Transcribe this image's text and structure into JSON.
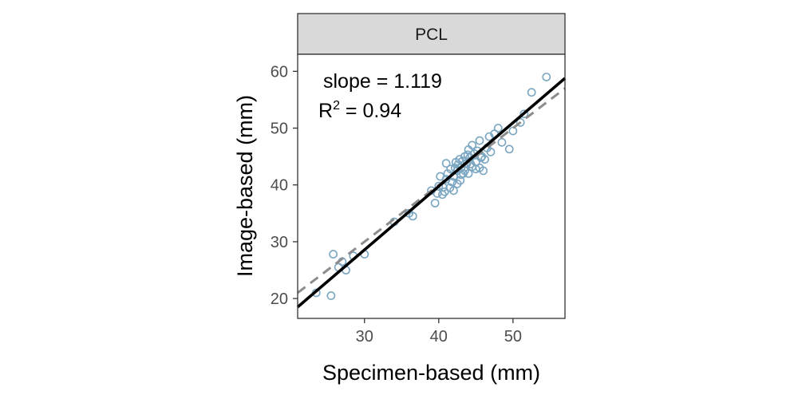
{
  "chart_data": {
    "type": "scatter",
    "panel": "PCL",
    "xlabel": "Specimen-based (mm)",
    "ylabel": "Image-based (mm)",
    "xlim": [
      21,
      57
    ],
    "ylim": [
      16.5,
      63
    ],
    "x_ticks": [
      30,
      40,
      50
    ],
    "y_ticks": [
      20,
      30,
      40,
      50,
      60
    ],
    "grid": false,
    "annotation": {
      "slope_text": "slope = 1.119",
      "r2_prefix": "R",
      "r2_sup": "2",
      "r2_suffix": " = 0.94"
    },
    "fit_line": {
      "slope": 1.119,
      "intercept": -5.0
    },
    "identity_line": {
      "slope": 1.0,
      "intercept": 0.0
    },
    "colors": {
      "points": "#7aa6c2",
      "fit": "#000000",
      "identity": "#8c8c8c",
      "strip_fill": "#d9d9d9",
      "border": "#333333"
    },
    "points": [
      [
        23.5,
        21.0
      ],
      [
        25.5,
        20.5
      ],
      [
        25.8,
        27.8
      ],
      [
        26.5,
        25.5
      ],
      [
        27.0,
        26.5
      ],
      [
        27.5,
        25.0
      ],
      [
        28.5,
        27.5
      ],
      [
        30.0,
        27.8
      ],
      [
        34.0,
        33.5
      ],
      [
        36.0,
        35.0
      ],
      [
        36.5,
        34.5
      ],
      [
        39.0,
        39.0
      ],
      [
        39.5,
        36.8
      ],
      [
        39.8,
        38.5
      ],
      [
        40.0,
        39.8
      ],
      [
        40.2,
        41.5
      ],
      [
        40.5,
        38.3
      ],
      [
        40.8,
        38.8
      ],
      [
        41.0,
        43.8
      ],
      [
        41.0,
        41.0
      ],
      [
        41.2,
        42.0
      ],
      [
        41.5,
        39.5
      ],
      [
        41.8,
        40.5
      ],
      [
        42.0,
        41.5
      ],
      [
        42.0,
        39.0
      ],
      [
        42.2,
        43.0
      ],
      [
        42.3,
        44.0
      ],
      [
        42.5,
        40.2
      ],
      [
        42.5,
        42.5
      ],
      [
        42.8,
        44.5
      ],
      [
        43.0,
        43.0
      ],
      [
        43.0,
        41.8
      ],
      [
        43.2,
        44.2
      ],
      [
        43.5,
        42.5
      ],
      [
        43.5,
        45.0
      ],
      [
        43.8,
        43.8
      ],
      [
        44.0,
        42.0
      ],
      [
        44.0,
        46.2
      ],
      [
        44.2,
        44.8
      ],
      [
        44.5,
        43.2
      ],
      [
        44.5,
        47.0
      ],
      [
        44.8,
        45.5
      ],
      [
        45.0,
        44.0
      ],
      [
        45.0,
        42.8
      ],
      [
        45.2,
        46.0
      ],
      [
        45.5,
        43.0
      ],
      [
        45.5,
        47.8
      ],
      [
        45.8,
        45.0
      ],
      [
        46.0,
        42.5
      ],
      [
        46.2,
        44.5
      ],
      [
        46.5,
        46.5
      ],
      [
        46.8,
        48.5
      ],
      [
        47.0,
        45.8
      ],
      [
        47.5,
        49.0
      ],
      [
        48.0,
        50.0
      ],
      [
        48.5,
        47.5
      ],
      [
        49.5,
        46.3
      ],
      [
        50.0,
        49.5
      ],
      [
        51.0,
        51.0
      ],
      [
        51.5,
        52.5
      ],
      [
        52.5,
        56.3
      ],
      [
        54.5,
        59.0
      ],
      [
        42.6,
        43.6
      ],
      [
        43.3,
        42.0
      ],
      [
        41.6,
        42.8
      ],
      [
        44.3,
        43.7
      ],
      [
        43.9,
        45.3
      ],
      [
        42.9,
        40.8
      ],
      [
        45.7,
        44.8
      ],
      [
        40.6,
        39.6
      ]
    ]
  }
}
